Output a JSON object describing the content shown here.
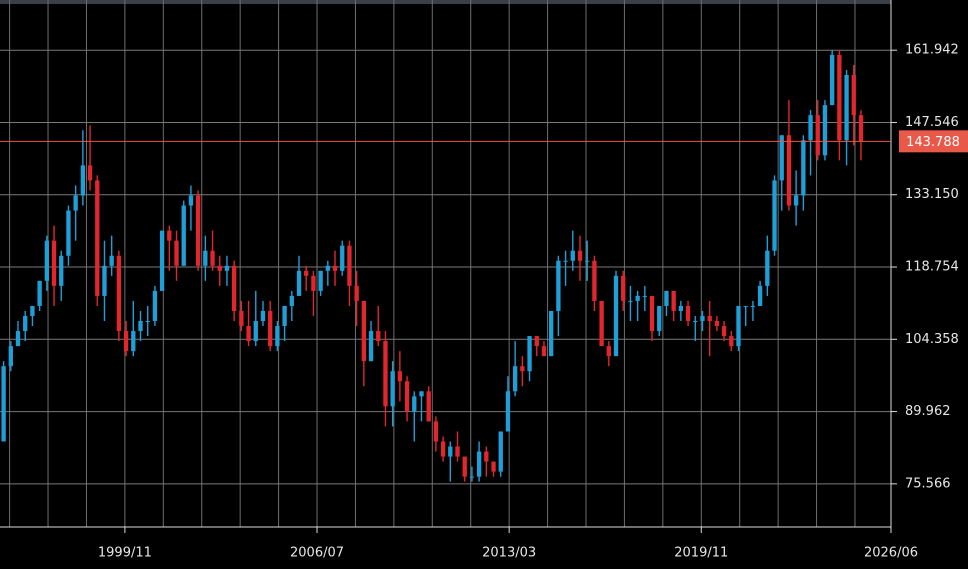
{
  "chart_data": {
    "type": "candlestick",
    "x": [
      "1995/07",
      "1995/10",
      "1996/01",
      "1996/04",
      "1996/07",
      "1996/10",
      "1997/01",
      "1997/04",
      "1997/07",
      "1997/10",
      "1998/01",
      "1998/04",
      "1998/07",
      "1998/10",
      "1999/01",
      "1999/04",
      "1999/07",
      "1999/10",
      "2000/01",
      "2000/04",
      "2000/07",
      "2000/10",
      "2001/01",
      "2001/04",
      "2001/07",
      "2001/10",
      "2002/01",
      "2002/04",
      "2002/07",
      "2002/10",
      "2003/01",
      "2003/04",
      "2003/07",
      "2003/10",
      "2004/01",
      "2004/04",
      "2004/07",
      "2004/10",
      "2005/01",
      "2005/04",
      "2005/07",
      "2005/10",
      "2006/01",
      "2006/04",
      "2006/07",
      "2006/10",
      "2007/01",
      "2007/04",
      "2007/07",
      "2007/10",
      "2008/01",
      "2008/04",
      "2008/07",
      "2008/10",
      "2009/01",
      "2009/04",
      "2009/07",
      "2009/10",
      "2010/01",
      "2010/04",
      "2010/07",
      "2010/10",
      "2011/01",
      "2011/04",
      "2011/07",
      "2011/10",
      "2012/01",
      "2012/04",
      "2012/07",
      "2012/10",
      "2013/01",
      "2013/04",
      "2013/07",
      "2013/10",
      "2014/01",
      "2014/04",
      "2014/07",
      "2014/10",
      "2015/01",
      "2015/04",
      "2015/07",
      "2015/10",
      "2016/01",
      "2016/04",
      "2016/07",
      "2016/10",
      "2017/01",
      "2017/04",
      "2017/07",
      "2017/10",
      "2018/01",
      "2018/04",
      "2018/07",
      "2018/10",
      "2019/01",
      "2019/04",
      "2019/07",
      "2019/10",
      "2020/01",
      "2020/04",
      "2020/07",
      "2020/10",
      "2021/01",
      "2021/04",
      "2021/07",
      "2021/10",
      "2022/01",
      "2022/04",
      "2022/07",
      "2022/10",
      "2023/01",
      "2023/04",
      "2023/07",
      "2023/10",
      "2024/01",
      "2024/04",
      "2024/07",
      "2024/10",
      "2025/01",
      "2025/04"
    ],
    "open": [
      84,
      99,
      103,
      106,
      109,
      111,
      116,
      124,
      115,
      121,
      130,
      133,
      139,
      136,
      113,
      119,
      121,
      106,
      102,
      106,
      108,
      108,
      114,
      126,
      124,
      119,
      131,
      133,
      119,
      122,
      119,
      118,
      119,
      110,
      107,
      104,
      108,
      110,
      103,
      107,
      111,
      113,
      118,
      117,
      114,
      118,
      119,
      118,
      123,
      115,
      112,
      100,
      106,
      104,
      91,
      98,
      96,
      90,
      93,
      94,
      88,
      84,
      81,
      83,
      81,
      77,
      77,
      82,
      80,
      78,
      86,
      94,
      99,
      98,
      105,
      103,
      101,
      110,
      120,
      120,
      122,
      120,
      120,
      112,
      103,
      101,
      117,
      112,
      112,
      113,
      113,
      106,
      111,
      114,
      110,
      111,
      108,
      108,
      109,
      108,
      107,
      105,
      103,
      111,
      111,
      111,
      115,
      122,
      136,
      145,
      131,
      133,
      144,
      149,
      141,
      151,
      161,
      144,
      157,
      149
    ],
    "high": [
      100,
      104,
      108,
      110,
      111,
      116,
      125,
      127,
      122,
      131,
      135,
      146,
      147,
      137,
      124,
      125,
      122,
      108,
      112,
      110,
      111,
      115,
      126,
      127,
      126,
      132,
      135,
      134,
      125,
      126,
      121,
      121,
      120,
      112,
      112,
      114,
      112,
      112,
      108,
      111,
      114,
      121,
      119,
      118,
      118,
      120,
      122,
      124,
      124,
      118,
      112,
      108,
      111,
      106,
      100,
      102,
      97,
      94,
      94,
      95,
      89,
      85,
      84,
      86,
      81,
      79,
      84,
      83,
      80,
      86,
      97,
      104,
      101,
      105,
      105,
      104,
      110,
      121,
      122,
      126,
      125,
      124,
      121,
      112,
      104,
      118,
      118,
      115,
      114,
      115,
      113,
      111,
      114,
      114,
      112,
      112,
      109,
      110,
      112,
      109,
      108,
      106,
      111,
      111,
      112,
      116,
      125,
      137,
      145,
      152,
      138,
      145,
      150,
      152,
      152,
      162,
      162,
      158,
      159,
      150
    ],
    "low": [
      84,
      98,
      103,
      104,
      107,
      110,
      114,
      111,
      112,
      119,
      124,
      131,
      134,
      111,
      108,
      117,
      104,
      101,
      101,
      104,
      105,
      107,
      114,
      118,
      116,
      119,
      126,
      118,
      116,
      118,
      115,
      115,
      108,
      106,
      103,
      103,
      107,
      102,
      102,
      104,
      108,
      113,
      114,
      109,
      113,
      115,
      115,
      117,
      111,
      107,
      95,
      100,
      103,
      87,
      87,
      92,
      88,
      84,
      88,
      88,
      82,
      80,
      76,
      80,
      76,
      76,
      76,
      77,
      77,
      77,
      86,
      93,
      95,
      96,
      101,
      101,
      101,
      105,
      115,
      118,
      116,
      116,
      110,
      103,
      99,
      101,
      110,
      108,
      108,
      110,
      104,
      105,
      109,
      108,
      108,
      107,
      104,
      106,
      101,
      106,
      104,
      102,
      102,
      107,
      108,
      111,
      113,
      121,
      130,
      130,
      127,
      130,
      137,
      140,
      140,
      151,
      140,
      139,
      143,
      140
    ],
    "close": [
      99,
      103,
      106,
      109,
      111,
      116,
      124,
      115,
      121,
      130,
      133,
      139,
      136,
      113,
      119,
      121,
      106,
      102,
      106,
      108,
      108,
      114,
      126,
      124,
      119,
      131,
      133,
      119,
      122,
      119,
      118,
      119,
      110,
      107,
      104,
      108,
      110,
      103,
      107,
      111,
      113,
      118,
      117,
      114,
      118,
      119,
      118,
      123,
      115,
      112,
      100,
      106,
      104,
      91,
      98,
      96,
      90,
      93,
      94,
      88,
      84,
      81,
      83,
      81,
      77,
      77,
      82,
      80,
      78,
      86,
      94,
      99,
      98,
      105,
      103,
      101,
      110,
      120,
      120,
      122,
      120,
      120,
      112,
      103,
      101,
      117,
      112,
      112,
      113,
      113,
      106,
      111,
      114,
      110,
      111,
      108,
      108,
      109,
      108,
      107,
      105,
      103,
      111,
      111,
      111,
      115,
      122,
      136,
      145,
      131,
      133,
      144,
      149,
      141,
      151,
      161,
      144,
      157,
      149,
      143.788
    ],
    "up_color": "#1e9fd8",
    "down_color": "#e2262e",
    "xlim": [
      "1995/07",
      "2026/06"
    ],
    "xticks": [
      "1999/11",
      "2006/07",
      "2013/03",
      "2019/11",
      "2026/06"
    ],
    "ylim": [
      66.97,
      171.94
    ],
    "yticks": [
      75.566,
      89.962,
      104.358,
      118.754,
      {
        "value": 133.15,
        "label": "133.150"
      },
      147.546,
      161.942
    ],
    "grid": true,
    "last_price": 143.788,
    "last_price_color": "#e8594a"
  }
}
